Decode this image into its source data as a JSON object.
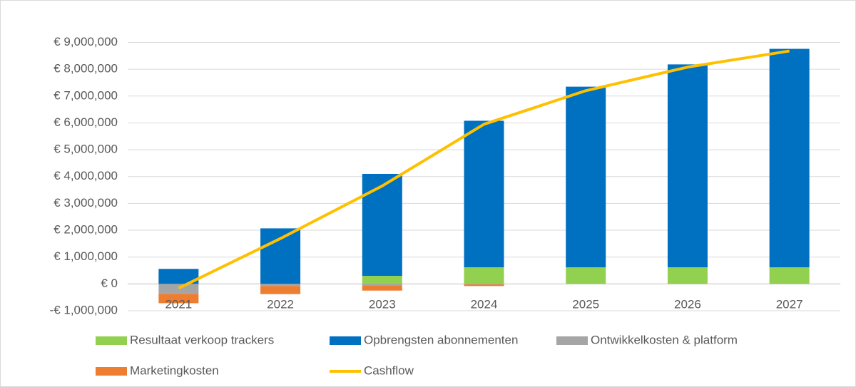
{
  "chart_data": {
    "type": "bar",
    "stacked": true,
    "categories": [
      "2021",
      "2022",
      "2023",
      "2024",
      "2025",
      "2026",
      "2027"
    ],
    "series": [
      {
        "name": "Resultaat verkoop trackers",
        "color": "#92d050",
        "values": [
          0,
          0,
          300000,
          620000,
          620000,
          620000,
          620000
        ]
      },
      {
        "name": "Opbrengsten abonnementen",
        "color": "#0070c0",
        "values": [
          560000,
          2070000,
          3800000,
          5460000,
          6730000,
          7560000,
          8140000
        ]
      },
      {
        "name": "Ontwikkelkosten & platform",
        "color": "#a5a5a5",
        "values": [
          -370000,
          -80000,
          -50000,
          -20000,
          0,
          0,
          0
        ]
      },
      {
        "name": "Marketingkosten",
        "color": "#ed7d31",
        "values": [
          -350000,
          -300000,
          -200000,
          -60000,
          0,
          0,
          0
        ]
      },
      {
        "name": "Cashflow",
        "color": "#ffc000",
        "type": "line",
        "values": [
          -160000,
          1690000,
          3650000,
          5950000,
          7200000,
          8080000,
          8680000
        ]
      }
    ],
    "ylim": [
      -1000000,
      9000000
    ],
    "yticks": [
      {
        "value": -1000000,
        "label": "-€ 1,000,000"
      },
      {
        "value": 0,
        "label": "€ 0"
      },
      {
        "value": 1000000,
        "label": "€ 1,000,000"
      },
      {
        "value": 2000000,
        "label": "€ 2,000,000"
      },
      {
        "value": 3000000,
        "label": "€ 3,000,000"
      },
      {
        "value": 4000000,
        "label": "€ 4,000,000"
      },
      {
        "value": 5000000,
        "label": "€ 5,000,000"
      },
      {
        "value": 6000000,
        "label": "€ 6,000,000"
      },
      {
        "value": 7000000,
        "label": "€ 7,000,000"
      },
      {
        "value": 8000000,
        "label": "€ 8,000,000"
      },
      {
        "value": 9000000,
        "label": "€ 9,000,000"
      }
    ],
    "grid": true,
    "legend": "bottom"
  }
}
